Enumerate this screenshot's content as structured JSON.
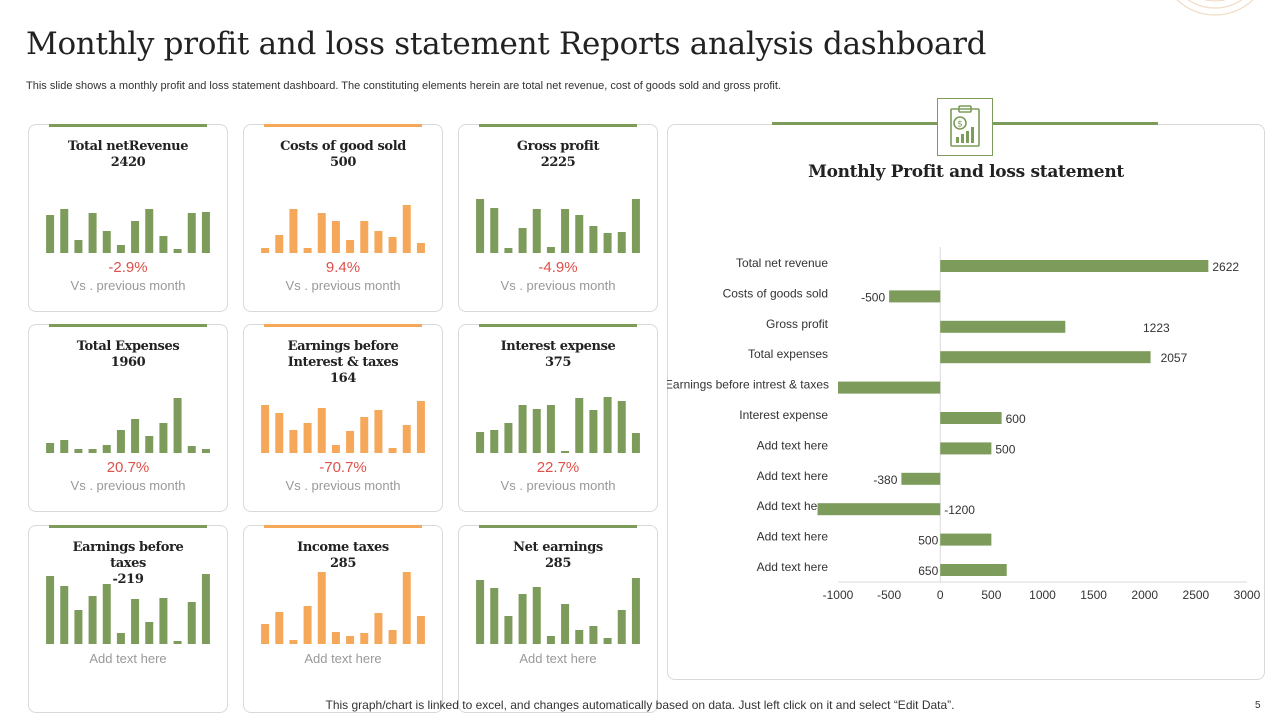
{
  "page": {
    "title": "Monthly profit and loss statement Reports analysis dashboard",
    "subtitle": "This slide shows a monthly profit and loss statement dashboard. The constituting elements herein are total net revenue, cost of goods sold and gross profit.",
    "footer": "This graph/chart is linked to excel, and changes automatically based on data. Just left click on it and select “Edit Data”.",
    "page_number": "5"
  },
  "colors": {
    "green": "#7d9b5a",
    "orange": "#f5a85a",
    "red_text": "#e0504a",
    "grey_text": "#999999"
  },
  "cards": [
    {
      "title": "Total netRevenue",
      "value": "2420",
      "change": "-2.9%",
      "note": "Vs . previous  month",
      "color": "green",
      "bars": [
        38,
        44,
        13,
        40,
        22,
        8,
        32,
        44,
        17,
        4,
        40,
        41
      ]
    },
    {
      "title": "Costs of good sold",
      "value": "500",
      "change": "9.4%",
      "note": "Vs . previous  month",
      "color": "orange",
      "bars": [
        5,
        18,
        44,
        5,
        40,
        32,
        13,
        32,
        22,
        16,
        48,
        10
      ]
    },
    {
      "title": "Gross profit",
      "value": "2225",
      "change": "-4.9%",
      "note": "Vs . previous  month",
      "color": "green",
      "bars": [
        54,
        45,
        5,
        25,
        44,
        6,
        44,
        38,
        27,
        20,
        21,
        54
      ]
    },
    {
      "title": "Total Expenses",
      "value": "1960",
      "change": "20.7%",
      "note": "Vs . previous  month",
      "color": "green",
      "bars": [
        10,
        13,
        4,
        4,
        8,
        23,
        34,
        17,
        30,
        55,
        7,
        4
      ]
    },
    {
      "title": "Earnings before Interest & taxes",
      "value": "164",
      "change": "-70.7%",
      "note": "Vs . previous  month",
      "color": "orange",
      "bars": [
        48,
        40,
        23,
        30,
        45,
        8,
        22,
        36,
        43,
        5,
        28,
        52
      ]
    },
    {
      "title": "Interest expense",
      "value": "375",
      "change": "22.7%",
      "note": "Vs . previous  month",
      "color": "green",
      "bars": [
        21,
        23,
        30,
        48,
        44,
        48,
        2,
        55,
        43,
        56,
        52,
        20
      ]
    },
    {
      "title": "Earnings before taxes",
      "value": "-219",
      "change": "",
      "note": "Add text here",
      "color": "green",
      "bars": [
        68,
        58,
        34,
        48,
        60,
        11,
        45,
        22,
        46,
        3,
        42,
        70
      ]
    },
    {
      "title": "Income taxes",
      "value": "285",
      "change": "",
      "note": "Add text here",
      "color": "orange",
      "bars": [
        20,
        32,
        4,
        38,
        72,
        12,
        8,
        11,
        31,
        14,
        75,
        28
      ]
    },
    {
      "title": "Net earnings",
      "value": "285",
      "change": "",
      "note": "Add text here",
      "color": "green",
      "bars": [
        64,
        56,
        28,
        50,
        57,
        8,
        40,
        14,
        18,
        6,
        34,
        66
      ]
    }
  ],
  "chart_data": {
    "type": "bar",
    "orientation": "horizontal",
    "title": "Monthly Profit and loss statement",
    "categories": [
      "Total net revenue",
      "Costs of goods sold",
      "Gross profit",
      "Total expenses",
      "Earnings before intrest & taxes",
      "Interest expense",
      "Add text here",
      "Add text here",
      "Add text here",
      "Add text here",
      "Add text here"
    ],
    "values": [
      2622,
      -500,
      1223,
      2057,
      -1000,
      600,
      500,
      -380,
      -1200,
      500,
      650
    ],
    "data_labels": [
      "2622",
      "-500",
      "1223",
      "2057",
      "",
      "600",
      "500",
      "-380",
      "-1200",
      "500",
      "650"
    ],
    "xlim": [
      -1000,
      3000
    ],
    "xticks": [
      "-1000",
      "-500",
      "0",
      "500",
      "1000",
      "1500",
      "2000",
      "2500",
      "3000"
    ],
    "color": "#7d9b5a",
    "grid": false
  }
}
